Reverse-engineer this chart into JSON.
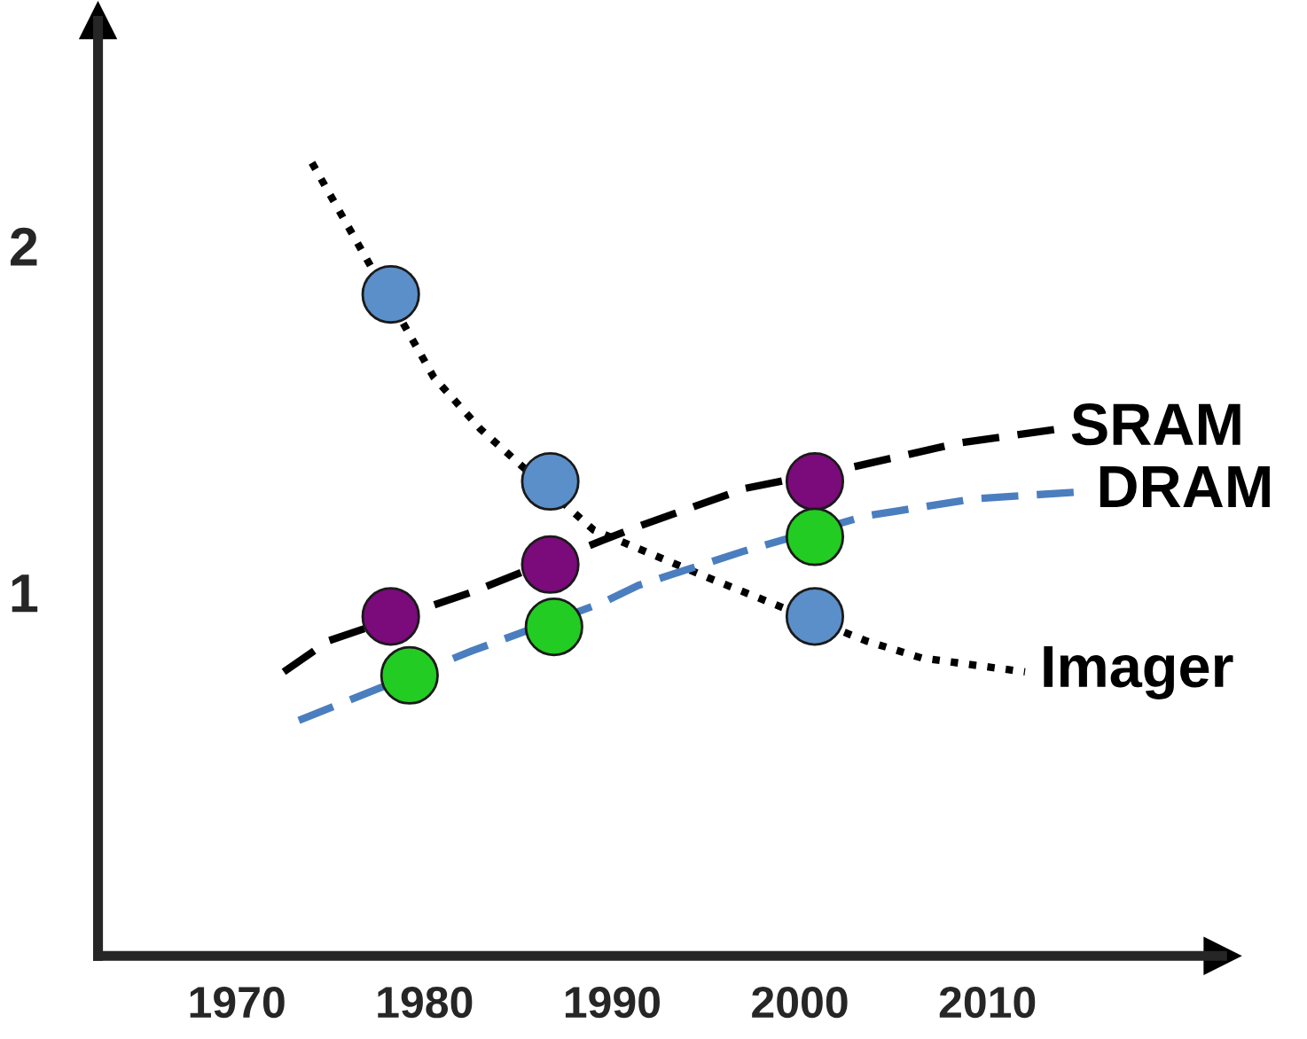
{
  "chart_data": {
    "type": "line",
    "xlim": [
      1962.6,
      2022.5
    ],
    "ylim": [
      -0.05,
      2.65
    ],
    "xticks": [
      1970,
      1980,
      1990,
      2000,
      2010
    ],
    "yticks": [
      1,
      2
    ],
    "grid": false,
    "legend": false,
    "series": [
      {
        "name": "Imager",
        "color": "#000000",
        "line_style": "dotted",
        "marker": "none",
        "x": [
          1974,
          1980.5,
          1983,
          1989,
          1995.2,
          2003.5,
          2006.5,
          2012
        ],
        "values": [
          2.24,
          1.62,
          1.47,
          1.18,
          1.04,
          0.86,
          0.81,
          0.77
        ]
      },
      {
        "name": "SRAM",
        "color": "#000000",
        "line_style": "dashed",
        "marker": "none",
        "x": [
          1972.5,
          1974.9,
          1982.5,
          1989.5,
          1991.4,
          1997.1,
          2002.7,
          2008.4,
          2013.6
        ],
        "values": [
          0.77,
          0.86,
          1.0,
          1.15,
          1.19,
          1.3,
          1.36,
          1.43,
          1.47
        ]
      },
      {
        "name": "DRAM",
        "color": "#4a7ebf",
        "line_style": "dashed",
        "marker": "none",
        "x": [
          1973.3,
          1982.5,
          1989.5,
          1991.4,
          1997.1,
          2003.5,
          2009.3,
          2015
        ],
        "values": [
          0.63,
          0.83,
          0.97,
          1.02,
          1.12,
          1.22,
          1.27,
          1.29
        ]
      },
      {
        "type": "scatter",
        "color": "#5b8fc9",
        "marker": "circle",
        "x": [
          1978.2,
          1986.7,
          2000.8
        ],
        "values": [
          1.86,
          1.32,
          0.93
        ]
      },
      {
        "type": "scatter",
        "color": "#7b0a7b",
        "marker": "circle",
        "x": [
          1978.2,
          1986.7,
          2000.8
        ],
        "values": [
          0.93,
          1.08,
          1.32
        ]
      },
      {
        "type": "scatter",
        "color": "#22cc22",
        "marker": "circle",
        "x": [
          1979.2,
          1986.9,
          2000.8
        ],
        "values": [
          0.76,
          0.9,
          1.16
        ]
      }
    ]
  }
}
